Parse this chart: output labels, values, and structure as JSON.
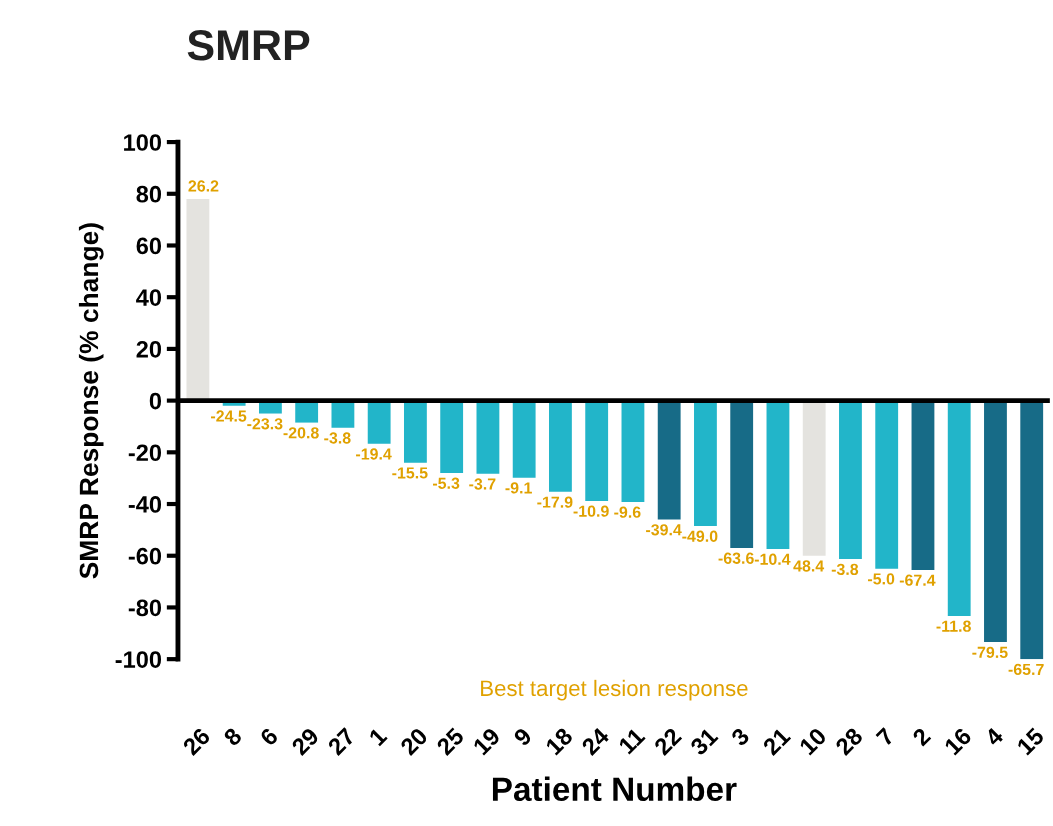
{
  "chart_data": {
    "type": "bar",
    "title": "SMRP",
    "xlabel": "Patient Number",
    "ylabel": "SMRP Response (% change)",
    "categories": [
      "26",
      "8",
      "6",
      "29",
      "27",
      "1",
      "20",
      "25",
      "19",
      "9",
      "18",
      "24",
      "11",
      "22",
      "31",
      "3",
      "21",
      "10",
      "28",
      "7",
      "2",
      "16",
      "4",
      "15"
    ],
    "values": [
      78,
      -2,
      -5,
      -8.5,
      -10.5,
      -16.7,
      -24,
      -28,
      -28.3,
      -29.8,
      -35.3,
      -38.8,
      -39.2,
      -46,
      -48.5,
      -57,
      -57.4,
      -60,
      -61.3,
      -65,
      -65.5,
      -83.3,
      -93.4,
      -100
    ],
    "colors": [
      "#e4e3df",
      "#22b5c9",
      "#22b5c9",
      "#22b5c9",
      "#22b5c9",
      "#22b5c9",
      "#22b5c9",
      "#22b5c9",
      "#22b5c9",
      "#22b5c9",
      "#22b5c9",
      "#22b5c9",
      "#22b5c9",
      "#176b87",
      "#22b5c9",
      "#176b87",
      "#22b5c9",
      "#e4e3df",
      "#22b5c9",
      "#22b5c9",
      "#176b87",
      "#22b5c9",
      "#176b87",
      "#176b87"
    ],
    "ylim": [
      -100,
      100
    ],
    "yticks": [
      -100,
      -80,
      -60,
      -40,
      -20,
      0,
      20,
      40,
      60,
      80,
      100
    ],
    "grid": false,
    "ref_lines": [
      {
        "axis": "y",
        "value": 0,
        "color": "#000000"
      }
    ],
    "annotations": [
      {
        "text": "26.2",
        "x": "26",
        "y": 78
      },
      {
        "text": "-24.5",
        "x": "8",
        "y": -2
      },
      {
        "text": "-23.3",
        "x": "6",
        "y": -5
      },
      {
        "text": "-20.8",
        "x": "29",
        "y": -8.5
      },
      {
        "text": "-3.8",
        "x": "27",
        "y": -10.5
      },
      {
        "text": "-19.4",
        "x": "1",
        "y": -16.7
      },
      {
        "text": "-15.5",
        "x": "20",
        "y": -24
      },
      {
        "text": "-5.3",
        "x": "25",
        "y": -28
      },
      {
        "text": "-3.7",
        "x": "19",
        "y": -28.3
      },
      {
        "text": "-9.1",
        "x": "9",
        "y": -29.8
      },
      {
        "text": "-17.9",
        "x": "18",
        "y": -35.3
      },
      {
        "text": "-10.9",
        "x": "24",
        "y": -38.8
      },
      {
        "text": "-9.6",
        "x": "11",
        "y": -39.2
      },
      {
        "text": "-39.4",
        "x": "22",
        "y": -46
      },
      {
        "text": "-49.0",
        "x": "31",
        "y": -48.5
      },
      {
        "text": "-63.6",
        "x": "3",
        "y": -57
      },
      {
        "text": "-10.4",
        "x": "21",
        "y": -57.4
      },
      {
        "text": "48.4",
        "x": "10",
        "y": -60
      },
      {
        "text": "-3.8",
        "x": "28",
        "y": -61.3
      },
      {
        "text": "-5.0",
        "x": "7",
        "y": -65
      },
      {
        "text": "-67.4",
        "x": "2",
        "y": -65.5
      },
      {
        "text": "-11.8",
        "x": "16",
        "y": -83.3
      },
      {
        "text": "-79.5",
        "x": "4",
        "y": -93.4
      },
      {
        "text": "-65.7",
        "x": "15",
        "y": -100
      },
      "Best target lesion response"
    ]
  }
}
